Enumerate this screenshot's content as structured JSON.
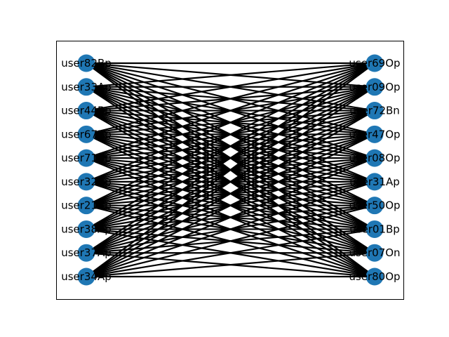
{
  "graph": {
    "type": "complete-bipartite",
    "node_color": "#1f77b4",
    "edge_color": "#000000",
    "left_nodes": [
      "user82Bp",
      "user33Ap",
      "user44Bp",
      "user67Bp",
      "user71Bp",
      "user32Ap",
      "user21Bp",
      "user38Ap",
      "user37Ap",
      "user34Ap"
    ],
    "right_nodes": [
      "user69Op",
      "user09Op",
      "user72Bn",
      "user47Op",
      "user08Op",
      "user31Ap",
      "user50Op",
      "user01Bp",
      "user07On",
      "user80Op"
    ]
  }
}
